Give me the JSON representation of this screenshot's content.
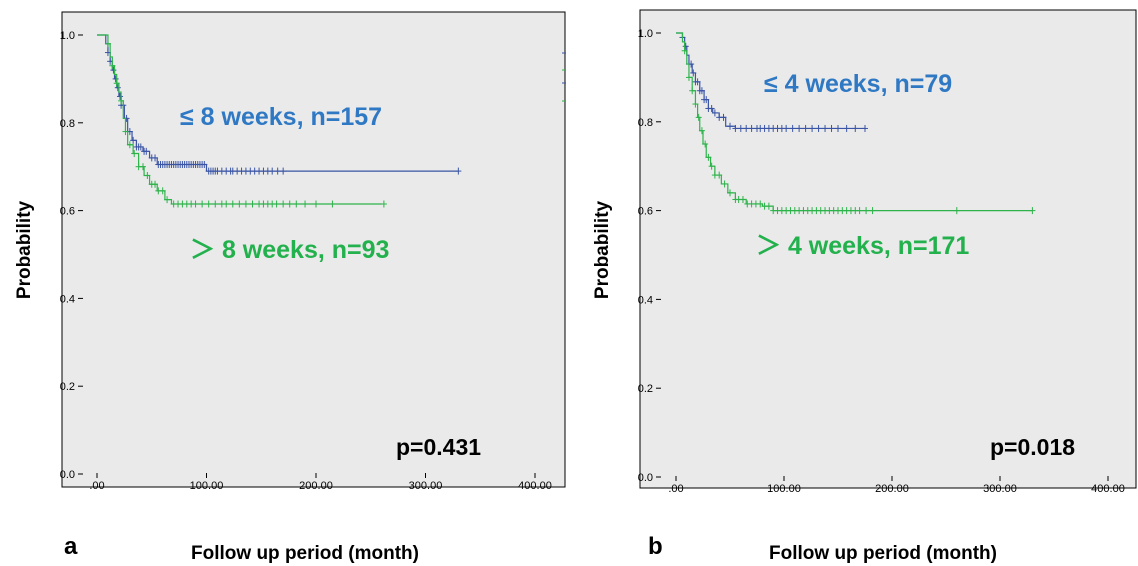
{
  "colors": {
    "group_le": "#3A55A5",
    "group_gt": "#2DB34A",
    "annot_le": "#2E78C4",
    "annot_gt": "#22B14C",
    "plot_bg": "#EAEAEA"
  },
  "chart_data": [
    {
      "type": "line",
      "panel": "a",
      "xlabel": "Follow up period (month)",
      "ylabel": "Probability",
      "xlim": [
        0,
        400
      ],
      "ylim": [
        0,
        1
      ],
      "x_ticks": [
        ".00",
        "100.00",
        "200.00",
        "300.00",
        "400.00"
      ],
      "y_ticks": [
        "0.0",
        "0.2",
        "0.4",
        "0.6",
        "0.8",
        "1.0"
      ],
      "grid": false,
      "annotations": {
        "le": "≤ 8 weeks, n=157",
        "gt": "＞ 8 weeks, n=93",
        "p": "p=0.431"
      },
      "series": [
        {
          "key": "le",
          "points": [
            [
              0,
              1.0
            ],
            [
              5,
              1.0
            ],
            [
              8,
              0.98
            ],
            [
              10,
              0.96
            ],
            [
              12,
              0.94
            ],
            [
              14,
              0.92
            ],
            [
              16,
              0.9
            ],
            [
              18,
              0.88
            ],
            [
              20,
              0.86
            ],
            [
              22,
              0.84
            ],
            [
              25,
              0.81
            ],
            [
              28,
              0.78
            ],
            [
              32,
              0.76
            ],
            [
              36,
              0.745
            ],
            [
              42,
              0.735
            ],
            [
              48,
              0.72
            ],
            [
              55,
              0.705
            ],
            [
              95,
              0.705
            ],
            [
              100,
              0.69
            ],
            [
              330,
              0.69
            ]
          ],
          "censor_x": [
            10,
            12,
            15,
            17,
            19,
            21,
            22,
            24,
            27,
            30,
            33,
            36,
            38,
            40,
            43,
            45,
            50,
            53,
            56,
            58,
            60,
            62,
            64,
            66,
            68,
            70,
            72,
            74,
            76,
            78,
            80,
            82,
            84,
            86,
            88,
            90,
            92,
            94,
            96,
            98,
            102,
            104,
            106,
            108,
            110,
            114,
            118,
            122,
            124,
            128,
            132,
            136,
            140,
            144,
            148,
            152,
            156,
            160,
            165,
            170,
            330
          ]
        },
        {
          "key": "gt",
          "points": [
            [
              0,
              1.0
            ],
            [
              8,
              1.0
            ],
            [
              10,
              0.98
            ],
            [
              12,
              0.95
            ],
            [
              14,
              0.93
            ],
            [
              16,
              0.91
            ],
            [
              18,
              0.89
            ],
            [
              20,
              0.87
            ],
            [
              22,
              0.85
            ],
            [
              24,
              0.81
            ],
            [
              26,
              0.78
            ],
            [
              28,
              0.75
            ],
            [
              33,
              0.73
            ],
            [
              38,
              0.7
            ],
            [
              43,
              0.68
            ],
            [
              48,
              0.66
            ],
            [
              55,
              0.645
            ],
            [
              62,
              0.625
            ],
            [
              68,
              0.615
            ],
            [
              260,
              0.615
            ]
          ],
          "censor_x": [
            10,
            14,
            18,
            22,
            26,
            30,
            34,
            38,
            42,
            46,
            50,
            53,
            56,
            60,
            64,
            70,
            74,
            78,
            82,
            86,
            90,
            96,
            102,
            108,
            114,
            118,
            124,
            130,
            136,
            142,
            148,
            152,
            156,
            160,
            164,
            170,
            176,
            182,
            190,
            200,
            215,
            262
          ]
        }
      ]
    },
    {
      "type": "line",
      "panel": "b",
      "xlabel": "Follow up period (month)",
      "ylabel": "Probability",
      "xlim": [
        0,
        400
      ],
      "ylim": [
        0,
        1
      ],
      "x_ticks": [
        ".00",
        "100.00",
        "200.00",
        "300.00",
        "400.00"
      ],
      "y_ticks": [
        "0.0",
        "0.2",
        "0.4",
        "0.6",
        "0.8",
        "1.0"
      ],
      "grid": false,
      "annotations": {
        "le": "≤ 4 weeks, n=79",
        "gt": "＞ 4 weeks, n=171",
        "p": "p=0.018"
      },
      "series": [
        {
          "key": "le",
          "points": [
            [
              0,
              1.0
            ],
            [
              4,
              1.0
            ],
            [
              6,
              0.99
            ],
            [
              8,
              0.97
            ],
            [
              10,
              0.95
            ],
            [
              12,
              0.93
            ],
            [
              15,
              0.91
            ],
            [
              18,
              0.89
            ],
            [
              22,
              0.87
            ],
            [
              26,
              0.85
            ],
            [
              30,
              0.83
            ],
            [
              34,
              0.82
            ],
            [
              40,
              0.81
            ],
            [
              46,
              0.79
            ],
            [
              55,
              0.785
            ],
            [
              175,
              0.785
            ]
          ],
          "censor_x": [
            6,
            9,
            12,
            14,
            16,
            18,
            20,
            22,
            24,
            26,
            28,
            30,
            33,
            36,
            40,
            44,
            50,
            55,
            60,
            65,
            70,
            75,
            78,
            82,
            86,
            90,
            94,
            98,
            102,
            108,
            114,
            120,
            126,
            132,
            138,
            144,
            150,
            158,
            166,
            175
          ]
        },
        {
          "key": "gt",
          "points": [
            [
              0,
              1.0
            ],
            [
              4,
              1.0
            ],
            [
              6,
              0.98
            ],
            [
              8,
              0.96
            ],
            [
              10,
              0.93
            ],
            [
              12,
              0.9
            ],
            [
              15,
              0.87
            ],
            [
              18,
              0.84
            ],
            [
              20,
              0.81
            ],
            [
              22,
              0.78
            ],
            [
              25,
              0.75
            ],
            [
              28,
              0.72
            ],
            [
              32,
              0.7
            ],
            [
              36,
              0.68
            ],
            [
              42,
              0.66
            ],
            [
              48,
              0.64
            ],
            [
              55,
              0.625
            ],
            [
              65,
              0.615
            ],
            [
              80,
              0.61
            ],
            [
              90,
              0.6
            ],
            [
              330,
              0.6
            ]
          ],
          "censor_x": [
            8,
            12,
            15,
            18,
            21,
            24,
            27,
            30,
            33,
            36,
            40,
            45,
            50,
            55,
            58,
            62,
            66,
            70,
            74,
            78,
            82,
            86,
            90,
            94,
            98,
            102,
            106,
            110,
            114,
            118,
            122,
            126,
            130,
            134,
            138,
            142,
            146,
            150,
            154,
            158,
            162,
            166,
            170,
            176,
            182,
            260,
            330
          ]
        }
      ]
    }
  ]
}
